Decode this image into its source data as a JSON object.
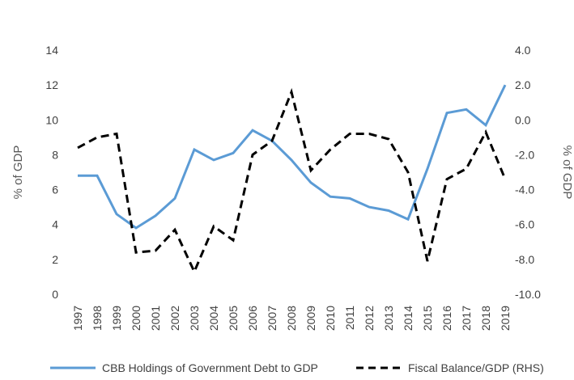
{
  "chart_data": {
    "type": "line",
    "categories": [
      "1997",
      "1998",
      "1999",
      "2000",
      "2001",
      "2002",
      "2003",
      "2004",
      "2005",
      "2006",
      "2007",
      "2008",
      "2009",
      "2010",
      "2011",
      "2012",
      "2013",
      "2014",
      "2015",
      "2016",
      "2017",
      "2018",
      "2019"
    ],
    "series": [
      {
        "name": "CBB Holdings of Government Debt to GDP",
        "axis": "left",
        "color": "#5b9bd5",
        "style": "solid",
        "values": [
          6.8,
          6.8,
          4.6,
          3.8,
          4.5,
          5.5,
          8.3,
          7.7,
          8.1,
          9.4,
          8.8,
          7.7,
          6.4,
          5.6,
          5.5,
          5.0,
          4.8,
          4.3,
          7.2,
          10.4,
          10.6,
          9.7,
          12.0
        ]
      },
      {
        "name": "Fiscal Balance/GDP (RHS)",
        "axis": "right",
        "color": "#000000",
        "style": "dashed",
        "values": [
          -1.6,
          -1.0,
          -0.8,
          -7.6,
          -7.5,
          -6.3,
          -8.7,
          -6.1,
          -6.9,
          -2.0,
          -1.2,
          1.6,
          -2.9,
          -1.7,
          -0.8,
          -0.8,
          -1.1,
          -3.0,
          -8.1,
          -3.4,
          -2.8,
          -0.7,
          -3.4
        ]
      }
    ],
    "ylabel": "% of GDP",
    "y2label": "% of GDP",
    "ylim": [
      0,
      14
    ],
    "y2lim": [
      -10,
      4
    ],
    "yticks": [
      "0",
      "2",
      "4",
      "6",
      "8",
      "10",
      "12",
      "14"
    ],
    "y2ticks": [
      "-10.0",
      "-8.0",
      "-6.0",
      "-4.0",
      "-2.0",
      "0.0",
      "2.0",
      "4.0"
    ],
    "grid": false,
    "legend_position": "bottom"
  }
}
